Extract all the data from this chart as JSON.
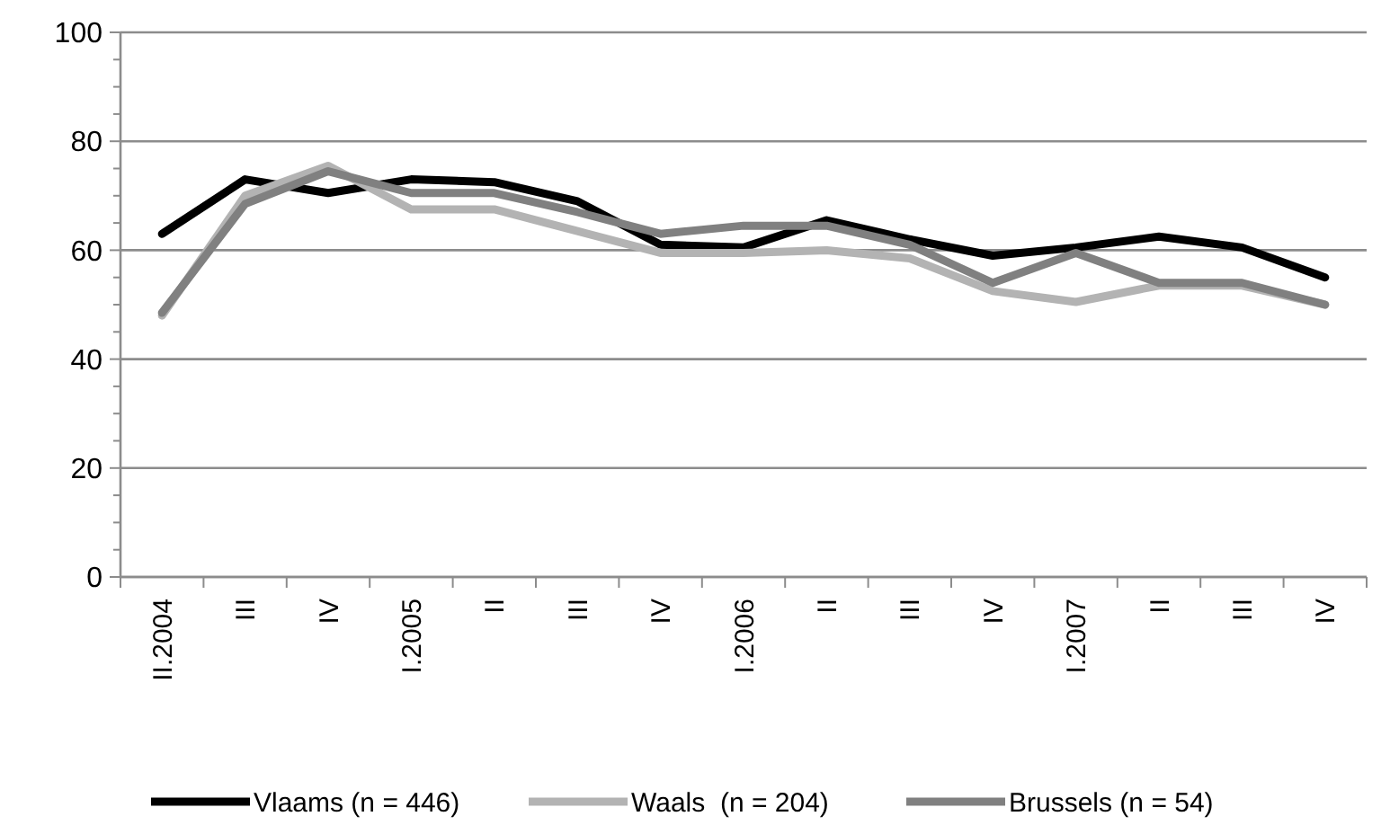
{
  "chart_data": {
    "type": "line",
    "categories": [
      "II.2004",
      "III",
      "IV",
      "I.2005",
      "II",
      "III",
      "IV",
      "I.2006",
      "II",
      "III",
      "IV",
      "I.2007",
      "II",
      "III",
      "IV"
    ],
    "series": [
      {
        "name": "Vlaams (n = 446)",
        "color": "#000000",
        "values": [
          63,
          73,
          70.5,
          73,
          72.5,
          69,
          61,
          60.5,
          65.5,
          62,
          59,
          60.5,
          62.5,
          60.5,
          55
        ]
      },
      {
        "name": "Waals  (n = 204)",
        "color": "#b3b3b3",
        "values": [
          48,
          70,
          75.5,
          67.5,
          67.5,
          63.5,
          59.5,
          59.5,
          60,
          58.5,
          52.5,
          50.5,
          53.5,
          53.5,
          50
        ]
      },
      {
        "name": "Brussels (n = 54)",
        "color": "#808080",
        "values": [
          48.5,
          68.5,
          74.5,
          70.5,
          70.5,
          67,
          63,
          64.5,
          64.5,
          61,
          54,
          59.5,
          54,
          54,
          50
        ]
      }
    ],
    "ylim": [
      0,
      100
    ],
    "yticks": [
      0,
      {
        "value": 5,
        "label": null
      },
      {
        "value": 10,
        "label": null
      },
      {
        "value": 15,
        "label": null
      },
      20,
      {
        "value": 25,
        "label": null
      },
      {
        "value": 30,
        "label": null
      },
      {
        "value": 35,
        "label": null
      },
      40,
      {
        "value": 45,
        "label": null
      },
      {
        "value": 50,
        "label": null
      },
      {
        "value": 55,
        "label": null
      },
      60,
      {
        "value": 65,
        "label": null
      },
      {
        "value": 70,
        "label": null
      },
      {
        "value": 75,
        "label": null
      },
      80,
      {
        "value": 85,
        "label": null
      },
      {
        "value": 90,
        "label": null
      },
      {
        "value": 95,
        "label": null
      },
      100
    ],
    "grid": "y",
    "legend": "bottom",
    "marker": "none",
    "line_style": "solid"
  }
}
